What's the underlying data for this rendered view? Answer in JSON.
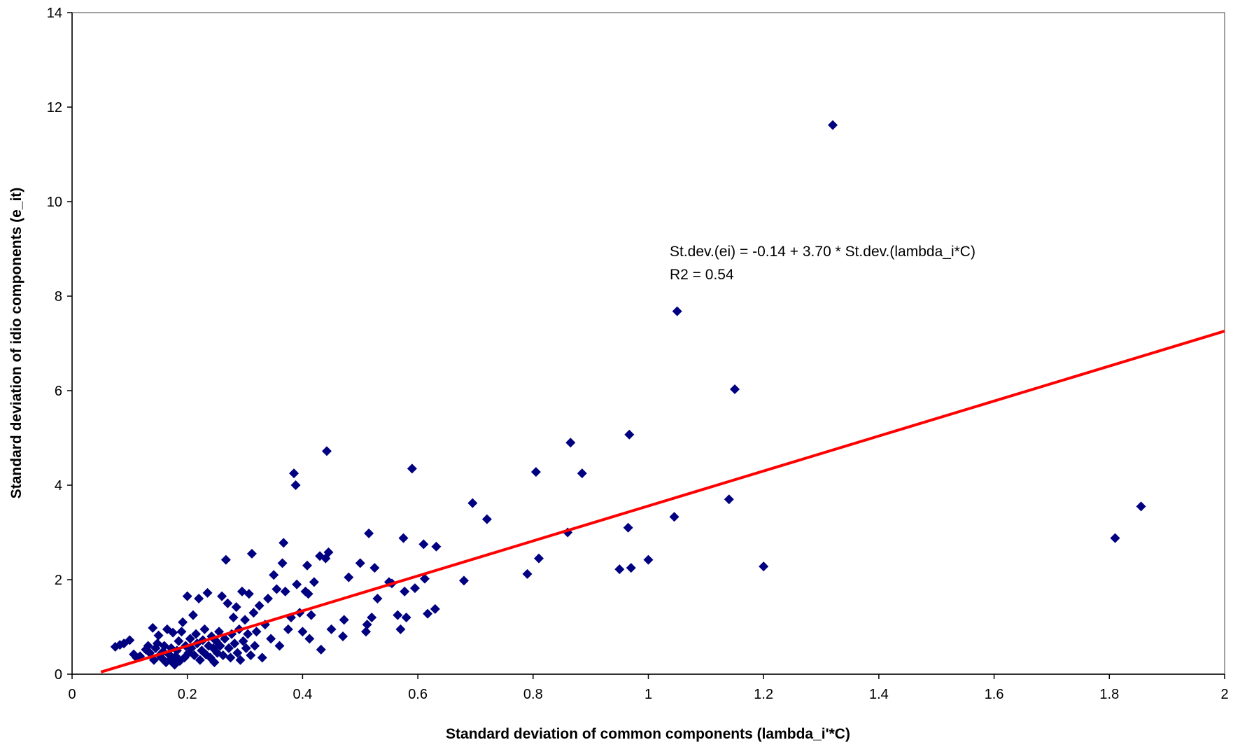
{
  "chart_data": {
    "type": "scatter",
    "title": "",
    "xlabel": "Standard deviation of common components (lambda_i'*C)",
    "ylabel": "Standard deviation of idio components (e_it)",
    "xlim": [
      0,
      2
    ],
    "ylim": [
      0,
      14
    ],
    "xticks": [
      0,
      0.2,
      0.4,
      0.6,
      0.8,
      1,
      1.2,
      1.4,
      1.6,
      1.8,
      2
    ],
    "xtick_labels": [
      "0",
      "0.2",
      "0.4",
      "0.6",
      "0.8",
      "1",
      "1.2",
      "1.4",
      "1.6",
      "1.8",
      "2"
    ],
    "yticks": [
      0,
      2,
      4,
      6,
      8,
      10,
      12,
      14
    ],
    "ytick_labels": [
      "0",
      "2",
      "4",
      "6",
      "8",
      "10",
      "12",
      "14"
    ],
    "grid": false,
    "legend": "none",
    "colors": {
      "points": "#000080",
      "trendline": "#ff0000",
      "axes": "#000000",
      "frame": "#808080"
    },
    "trendline": {
      "intercept": -0.14,
      "slope": 3.7,
      "x_range": [
        0.05,
        2
      ]
    },
    "annotations": [
      "St.dev.(ei) = -0.14 + 3.70 * St.dev.(lambda_i*C)",
      "R2 = 0.54"
    ],
    "series": [
      {
        "points": [
          [
            0.075,
            0.58
          ],
          [
            0.083,
            0.62
          ],
          [
            0.09,
            0.65
          ],
          [
            0.1,
            0.72
          ],
          [
            0.107,
            0.42
          ],
          [
            0.112,
            0.35
          ],
          [
            0.118,
            0.38
          ],
          [
            0.128,
            0.52
          ],
          [
            0.132,
            0.6
          ],
          [
            0.135,
            0.45
          ],
          [
            0.14,
            0.98
          ],
          [
            0.142,
            0.3
          ],
          [
            0.145,
            0.55
          ],
          [
            0.148,
            0.65
          ],
          [
            0.15,
            0.82
          ],
          [
            0.152,
            0.4
          ],
          [
            0.155,
            0.35
          ],
          [
            0.158,
            0.48
          ],
          [
            0.16,
            0.6
          ],
          [
            0.163,
            0.25
          ],
          [
            0.165,
            0.95
          ],
          [
            0.168,
            0.42
          ],
          [
            0.17,
            0.3
          ],
          [
            0.172,
            0.55
          ],
          [
            0.175,
            0.88
          ],
          [
            0.178,
            0.2
          ],
          [
            0.18,
            0.38
          ],
          [
            0.182,
            0.5
          ],
          [
            0.185,
            0.7
          ],
          [
            0.187,
            0.28
          ],
          [
            0.19,
            0.9
          ],
          [
            0.192,
            1.1
          ],
          [
            0.195,
            0.35
          ],
          [
            0.197,
            0.6
          ],
          [
            0.2,
            1.65
          ],
          [
            0.202,
            0.45
          ],
          [
            0.205,
            0.75
          ],
          [
            0.207,
            0.55
          ],
          [
            0.21,
            1.25
          ],
          [
            0.212,
            0.4
          ],
          [
            0.215,
            0.85
          ],
          [
            0.217,
            0.65
          ],
          [
            0.22,
            1.6
          ],
          [
            0.222,
            0.3
          ],
          [
            0.225,
            0.5
          ],
          [
            0.227,
            0.72
          ],
          [
            0.23,
            0.95
          ],
          [
            0.232,
            0.42
          ],
          [
            0.235,
            1.72
          ],
          [
            0.237,
            0.6
          ],
          [
            0.24,
            0.35
          ],
          [
            0.242,
            0.8
          ],
          [
            0.245,
            0.55
          ],
          [
            0.247,
            0.25
          ],
          [
            0.25,
            0.7
          ],
          [
            0.252,
            0.45
          ],
          [
            0.255,
            0.9
          ],
          [
            0.257,
            0.6
          ],
          [
            0.26,
            1.65
          ],
          [
            0.262,
            0.4
          ],
          [
            0.265,
            0.75
          ],
          [
            0.267,
            2.42
          ],
          [
            0.27,
            1.5
          ],
          [
            0.272,
            0.55
          ],
          [
            0.275,
            0.35
          ],
          [
            0.277,
            0.85
          ],
          [
            0.28,
            1.2
          ],
          [
            0.282,
            0.65
          ],
          [
            0.285,
            1.42
          ],
          [
            0.287,
            0.45
          ],
          [
            0.29,
            0.95
          ],
          [
            0.292,
            0.3
          ],
          [
            0.295,
            1.75
          ],
          [
            0.297,
            0.7
          ],
          [
            0.3,
            1.15
          ],
          [
            0.302,
            0.55
          ],
          [
            0.305,
            0.85
          ],
          [
            0.307,
            1.7
          ],
          [
            0.31,
            0.4
          ],
          [
            0.312,
            2.55
          ],
          [
            0.315,
            1.3
          ],
          [
            0.317,
            0.6
          ],
          [
            0.32,
            0.9
          ],
          [
            0.325,
            1.45
          ],
          [
            0.33,
            0.35
          ],
          [
            0.335,
            1.05
          ],
          [
            0.34,
            1.6
          ],
          [
            0.345,
            0.75
          ],
          [
            0.35,
            2.1
          ],
          [
            0.355,
            1.8
          ],
          [
            0.36,
            0.6
          ],
          [
            0.365,
            2.35
          ],
          [
            0.367,
            2.78
          ],
          [
            0.37,
            1.75
          ],
          [
            0.375,
            0.95
          ],
          [
            0.38,
            1.2
          ],
          [
            0.385,
            4.25
          ],
          [
            0.388,
            4.0
          ],
          [
            0.39,
            1.9
          ],
          [
            0.395,
            1.3
          ],
          [
            0.4,
            0.9
          ],
          [
            0.405,
            1.75
          ],
          [
            0.408,
            2.3
          ],
          [
            0.41,
            1.7
          ],
          [
            0.412,
            0.75
          ],
          [
            0.415,
            1.25
          ],
          [
            0.42,
            1.95
          ],
          [
            0.43,
            2.5
          ],
          [
            0.432,
            0.52
          ],
          [
            0.44,
            2.45
          ],
          [
            0.442,
            4.72
          ],
          [
            0.445,
            2.58
          ],
          [
            0.45,
            0.95
          ],
          [
            0.47,
            0.8
          ],
          [
            0.472,
            1.15
          ],
          [
            0.48,
            2.05
          ],
          [
            0.5,
            2.35
          ],
          [
            0.51,
            0.9
          ],
          [
            0.512,
            1.05
          ],
          [
            0.515,
            2.98
          ],
          [
            0.52,
            1.2
          ],
          [
            0.525,
            2.25
          ],
          [
            0.53,
            1.6
          ],
          [
            0.55,
            1.95
          ],
          [
            0.555,
            1.92
          ],
          [
            0.565,
            1.25
          ],
          [
            0.57,
            0.95
          ],
          [
            0.575,
            2.88
          ],
          [
            0.577,
            1.75
          ],
          [
            0.58,
            1.2
          ],
          [
            0.59,
            4.35
          ],
          [
            0.595,
            1.82
          ],
          [
            0.61,
            2.75
          ],
          [
            0.612,
            2.02
          ],
          [
            0.617,
            1.28
          ],
          [
            0.63,
            1.38
          ],
          [
            0.632,
            2.7
          ],
          [
            0.68,
            1.98
          ],
          [
            0.695,
            3.62
          ],
          [
            0.72,
            3.28
          ],
          [
            0.79,
            2.12
          ],
          [
            0.805,
            4.28
          ],
          [
            0.81,
            2.45
          ],
          [
            0.86,
            3.0
          ],
          [
            0.865,
            4.9
          ],
          [
            0.885,
            4.25
          ],
          [
            0.95,
            2.22
          ],
          [
            0.965,
            3.1
          ],
          [
            0.967,
            5.07
          ],
          [
            0.97,
            2.25
          ],
          [
            1.0,
            2.42
          ],
          [
            1.045,
            3.33
          ],
          [
            1.05,
            7.68
          ],
          [
            1.14,
            3.7
          ],
          [
            1.15,
            6.03
          ],
          [
            1.2,
            2.28
          ],
          [
            1.32,
            11.62
          ],
          [
            1.81,
            2.88
          ],
          [
            1.855,
            3.55
          ]
        ]
      }
    ]
  }
}
